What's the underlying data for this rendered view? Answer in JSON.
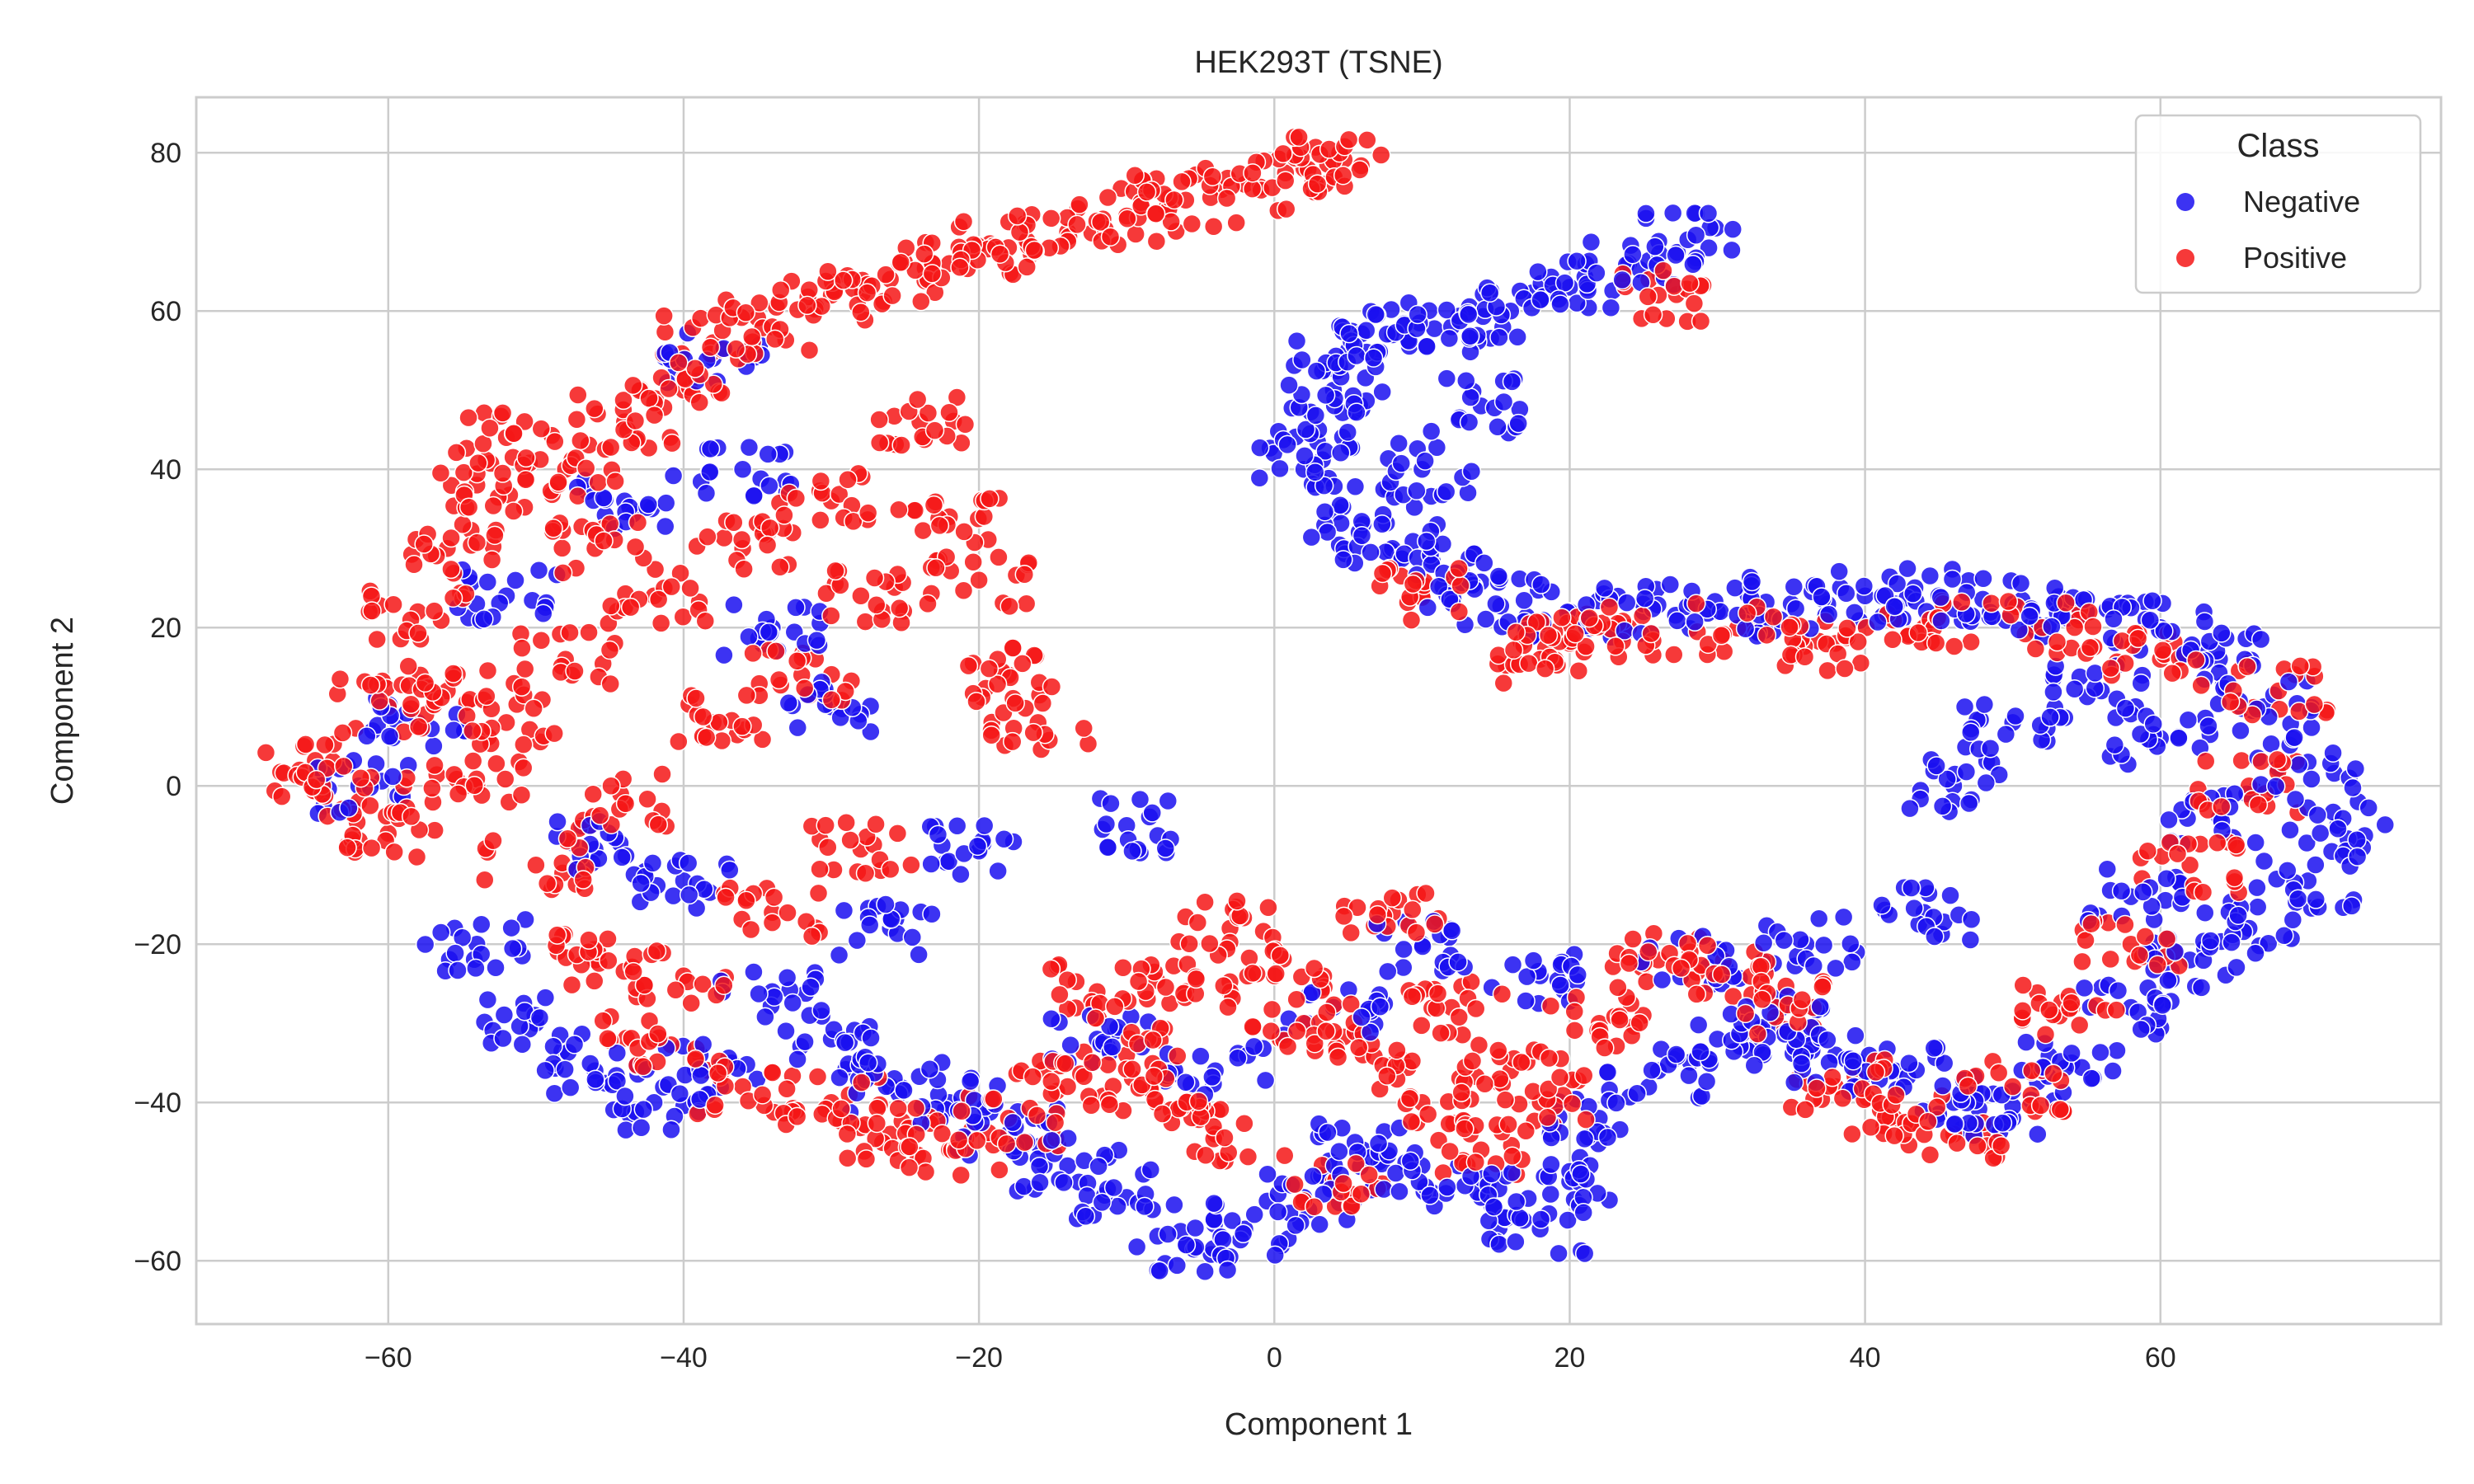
{
  "chart_data": {
    "type": "scatter",
    "title": "HEK293T (TSNE)",
    "xlabel": "Component 1",
    "ylabel": "Component 2",
    "xlim": [
      -73,
      79
    ],
    "ylim": [
      -68,
      87
    ],
    "xticks": [
      -60,
      -40,
      -20,
      0,
      20,
      40,
      60
    ],
    "yticks": [
      -60,
      -40,
      -20,
      0,
      20,
      40,
      60,
      80
    ],
    "xtick_labels": [
      "−60",
      "−40",
      "−20",
      "0",
      "20",
      "40",
      "60"
    ],
    "ytick_labels": [
      "−60",
      "−40",
      "−20",
      "0",
      "20",
      "40",
      "60",
      "80"
    ],
    "grid": true,
    "legend": {
      "title": "Class",
      "position": "top-right"
    },
    "series": [
      {
        "name": "Negative",
        "color": "#1a0ff0",
        "points": [
          [
            2,
            40
          ],
          [
            3,
            45
          ],
          [
            4,
            50
          ],
          [
            5,
            55
          ],
          [
            8,
            57
          ],
          [
            12,
            58
          ],
          [
            16,
            60
          ],
          [
            20,
            63
          ],
          [
            24,
            66
          ],
          [
            28,
            69
          ],
          [
            6,
            33
          ],
          [
            8,
            30
          ],
          [
            12,
            26
          ],
          [
            15,
            23
          ],
          [
            20,
            22
          ],
          [
            25,
            22
          ],
          [
            30,
            22
          ],
          [
            35,
            23
          ],
          [
            40,
            24
          ],
          [
            45,
            24
          ],
          [
            50,
            23
          ],
          [
            55,
            22
          ],
          [
            60,
            20
          ],
          [
            64,
            16
          ],
          [
            67,
            10
          ],
          [
            70,
            3
          ],
          [
            72,
            -5
          ],
          [
            70,
            -12
          ],
          [
            66,
            -18
          ],
          [
            62,
            -22
          ],
          [
            58,
            -28
          ],
          [
            54,
            -35
          ],
          [
            50,
            -42
          ],
          [
            46,
            -40
          ],
          [
            42,
            -36
          ],
          [
            38,
            -34
          ],
          [
            34,
            -30
          ],
          [
            30,
            -32
          ],
          [
            26,
            -36
          ],
          [
            22,
            -42
          ],
          [
            20,
            -50
          ],
          [
            18,
            -56
          ],
          [
            14,
            -52
          ],
          [
            10,
            -48
          ],
          [
            6,
            -46
          ],
          [
            2,
            -52
          ],
          [
            -2,
            -56
          ],
          [
            -6,
            -58
          ],
          [
            -10,
            -52
          ],
          [
            -14,
            -48
          ],
          [
            -18,
            -44
          ],
          [
            -22,
            -40
          ],
          [
            -26,
            -38
          ],
          [
            -30,
            -32
          ],
          [
            -34,
            -26
          ],
          [
            -38,
            -36
          ],
          [
            -42,
            -40
          ],
          [
            -46,
            -36
          ],
          [
            -50,
            -30
          ],
          [
            -54,
            -20
          ],
          [
            -30,
            10
          ],
          [
            -34,
            20
          ],
          [
            -36,
            40
          ],
          [
            -38,
            54
          ],
          [
            -40,
            -12
          ],
          [
            -20,
            -8
          ],
          [
            -10,
            -5
          ],
          [
            46,
            0
          ],
          [
            50,
            8
          ],
          [
            56,
            12
          ],
          [
            60,
            6
          ],
          [
            64,
            -4
          ],
          [
            58,
            -14
          ],
          [
            44,
            -16
          ],
          [
            36,
            -20
          ],
          [
            28,
            -22
          ],
          [
            18,
            -24
          ],
          [
            10,
            -20
          ],
          [
            4,
            -28
          ],
          [
            -4,
            -36
          ],
          [
            -12,
            -32
          ],
          [
            -26,
            -18
          ],
          [
            -46,
            -8
          ],
          [
            -58,
            8
          ],
          [
            -62,
            0
          ],
          [
            -52,
            24
          ],
          [
            -44,
            36
          ],
          [
            10,
            40
          ],
          [
            14,
            48
          ]
        ]
      },
      {
        "name": "Positive",
        "color": "#f51616",
        "points": [
          [
            -66,
            2
          ],
          [
            -62,
            -2
          ],
          [
            -60,
            10
          ],
          [
            -58,
            22
          ],
          [
            -56,
            30
          ],
          [
            -54,
            38
          ],
          [
            -52,
            44
          ],
          [
            -48,
            40
          ],
          [
            -44,
            46
          ],
          [
            -40,
            50
          ],
          [
            -38,
            56
          ],
          [
            -34,
            58
          ],
          [
            -30,
            62
          ],
          [
            -26,
            64
          ],
          [
            -22,
            66
          ],
          [
            -18,
            68
          ],
          [
            -14,
            70
          ],
          [
            -10,
            72
          ],
          [
            -6,
            74
          ],
          [
            -2,
            76
          ],
          [
            2,
            78
          ],
          [
            4,
            79
          ],
          [
            -24,
            46
          ],
          [
            -22,
            34
          ],
          [
            -20,
            26
          ],
          [
            -18,
            14
          ],
          [
            -16,
            8
          ],
          [
            -30,
            36
          ],
          [
            -36,
            30
          ],
          [
            -42,
            24
          ],
          [
            -48,
            16
          ],
          [
            -52,
            8
          ],
          [
            -54,
            0
          ],
          [
            -50,
            -10
          ],
          [
            -46,
            -22
          ],
          [
            -42,
            -32
          ],
          [
            -36,
            -38
          ],
          [
            -30,
            -40
          ],
          [
            -26,
            -44
          ],
          [
            -22,
            -46
          ],
          [
            -18,
            -42
          ],
          [
            -14,
            -38
          ],
          [
            -10,
            -34
          ],
          [
            -6,
            -26
          ],
          [
            -3,
            -18
          ],
          [
            0,
            -24
          ],
          [
            2,
            -30
          ],
          [
            6,
            -34
          ],
          [
            10,
            -40
          ],
          [
            14,
            -46
          ],
          [
            18,
            -40
          ],
          [
            22,
            -30
          ],
          [
            26,
            -22
          ],
          [
            30,
            -24
          ],
          [
            34,
            -28
          ],
          [
            38,
            -38
          ],
          [
            42,
            -42
          ],
          [
            46,
            -44
          ],
          [
            50,
            -38
          ],
          [
            54,
            -28
          ],
          [
            58,
            -20
          ],
          [
            62,
            -10
          ],
          [
            66,
            0
          ],
          [
            68,
            12
          ],
          [
            60,
            16
          ],
          [
            52,
            20
          ],
          [
            44,
            20
          ],
          [
            38,
            18
          ],
          [
            32,
            20
          ],
          [
            24,
            20
          ],
          [
            20,
            18
          ],
          [
            18,
            16
          ],
          [
            10,
            24
          ],
          [
            26,
            62
          ],
          [
            4,
            -50
          ],
          [
            -4,
            -44
          ],
          [
            -8,
            -40
          ],
          [
            -12,
            -26
          ],
          [
            -28,
            -8
          ],
          [
            -34,
            -16
          ],
          [
            -40,
            -24
          ],
          [
            -44,
            -2
          ],
          [
            -38,
            8
          ],
          [
            -32,
            14
          ],
          [
            -28,
            24
          ],
          [
            -46,
            30
          ],
          [
            -56,
            12
          ],
          [
            -60,
            -6
          ],
          [
            12,
            -28
          ],
          [
            16,
            -36
          ],
          [
            8,
            -16
          ]
        ]
      }
    ]
  }
}
